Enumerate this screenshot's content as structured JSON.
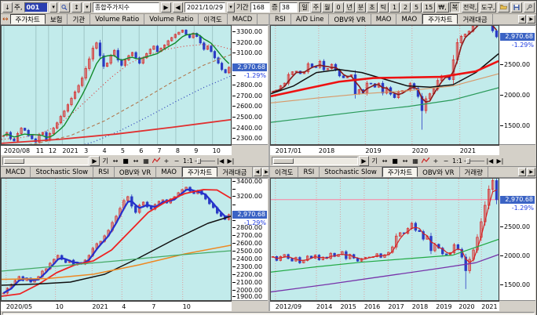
{
  "toolbar": {
    "collapse_button": "↓",
    "mode_label": "주,",
    "code_input": "001",
    "sort_button": "↕",
    "stock_name": "종합주가지수",
    "nav_forward": "▶",
    "nav_back": "◀",
    "date_value": "2021/10/29",
    "period_label": "기간",
    "period_value": "168",
    "count_label": "증",
    "count_value": "38",
    "timeframe_buttons": [
      {
        "label": "일",
        "pressed": true
      },
      {
        "label": "주",
        "pressed": false
      },
      {
        "label": "월",
        "pressed": false
      },
      {
        "label": "0",
        "pressed": false
      },
      {
        "label": "년",
        "pressed": false
      },
      {
        "label": "분",
        "pressed": false
      },
      {
        "label": "초",
        "pressed": false
      },
      {
        "label": "틱",
        "pressed": false
      },
      {
        "label": "1",
        "pressed": false
      },
      {
        "label": "2",
        "pressed": false
      },
      {
        "label": "5",
        "pressed": false
      },
      {
        "label": "15",
        "pressed": false
      },
      {
        "label": "₩,",
        "pressed": false
      },
      {
        "label": "복",
        "pressed": true
      }
    ],
    "menu_strategy": "전략,",
    "menu_tools": "도구,"
  },
  "tab_strips": {
    "top_left": {
      "selected": 0,
      "items": [
        "주가차트",
        "보험",
        "기관",
        "Volume Ratio",
        "Volume Ratio",
        "이격도",
        "MACD"
      ]
    },
    "top_right": {
      "selected": 5,
      "items": [
        "RSI",
        "A/D Line",
        "OBV와 VR",
        "MAO",
        "MAO",
        "주가차트",
        "거래대금"
      ]
    },
    "bottom_left": {
      "selected": 5,
      "items": [
        "MACD",
        "Stochastic Slow",
        "RSI",
        "OBV와 VR",
        "MAO",
        "주가차트",
        "거래대금"
      ]
    },
    "bottom_right": {
      "selected": 3,
      "items": [
        "이격도",
        "RSI",
        "Stochastic Slow",
        "주가차트",
        "OBV와 VR",
        "거래량"
      ]
    }
  },
  "mini_toolbar": {
    "scroll_next": "▶",
    "tools": [
      "기",
      "↔",
      "■",
      "↔",
      "▦"
    ],
    "zoom_in": "+",
    "zoom_out": "−",
    "one_to_one": "1:1",
    "nav_first": "|◀",
    "nav_last": "▶|"
  },
  "price_badge": {
    "value": "2,970.68",
    "change": "-1.29%"
  },
  "colors": {
    "chart_bg": "#c2ebeb",
    "badge_bg": "#3b63c4",
    "change_text": "#1e3ae0",
    "candle_up": "#d93030",
    "candle_down": "#2b3cc4",
    "hline_pink": "#ff7f9f"
  },
  "chart_data": {
    "tl": {
      "type": "candlestick",
      "timeframe": "daily",
      "ymin": 2250,
      "ymax": 3360,
      "badge": 2970.68,
      "grid_color": "#9fc6c6",
      "grid_dash": null,
      "yticks": [
        2300,
        2400,
        2500,
        2600,
        2700,
        2800,
        3100,
        3200,
        3300
      ],
      "yticks_minor": [
        2900,
        3000
      ],
      "xticks": [
        [
          "2020/08",
          0.01
        ],
        [
          "11",
          0.15
        ],
        [
          "12",
          0.205
        ],
        [
          "2021",
          0.265
        ],
        [
          "3",
          0.36
        ],
        [
          "4",
          0.44
        ],
        [
          "5",
          0.52
        ],
        [
          "6",
          0.6
        ],
        [
          "7",
          0.68
        ],
        [
          "8",
          0.76
        ],
        [
          "9",
          0.84
        ],
        [
          "10",
          0.92
        ]
      ],
      "closes": [
        2330,
        2360,
        2300,
        2280,
        2350,
        2400,
        2380,
        2330,
        2300,
        2270,
        2340,
        2360,
        2290,
        2350,
        2400,
        2450,
        2510,
        2560,
        2620,
        2680,
        2740,
        2800,
        2870,
        2960,
        3050,
        3150,
        3200,
        3080,
        2980,
        3010,
        3080,
        3130,
        3040,
        2990,
        3040,
        3080,
        3110,
        3060,
        3010,
        3060,
        3100,
        3140,
        3170,
        3120,
        3150,
        3180,
        3220,
        3250,
        3280,
        3300,
        3320,
        3280,
        3250,
        3290,
        3260,
        3200,
        3140,
        3170,
        3120,
        3060,
        3010,
        2950,
        2920,
        2970
      ],
      "ma": {
        "n": 6,
        "color": "#118a2a",
        "width": 1.4
      },
      "lines": [
        {
          "name": "ma60",
          "color": "#e03030",
          "width": 1.1,
          "dash": "1,3",
          "pts": [
            [
              0,
              2295
            ],
            [
              0.08,
              2310
            ],
            [
              0.16,
              2340
            ],
            [
              0.24,
              2420
            ],
            [
              0.32,
              2560
            ],
            [
              0.4,
              2720
            ],
            [
              0.48,
              2880
            ],
            [
              0.56,
              3010
            ],
            [
              0.64,
              3090
            ],
            [
              0.72,
              3140
            ],
            [
              0.8,
              3170
            ],
            [
              0.88,
              3185
            ],
            [
              0.94,
              3175
            ],
            [
              1,
              3140
            ]
          ]
        },
        {
          "name": "ma120",
          "color": "#b07850",
          "width": 1.1,
          "dash": "4,3",
          "pts": [
            [
              0,
              2215
            ],
            [
              0.15,
              2255
            ],
            [
              0.3,
              2330
            ],
            [
              0.45,
              2470
            ],
            [
              0.6,
              2650
            ],
            [
              0.75,
              2840
            ],
            [
              0.88,
              2990
            ],
            [
              1,
              3090
            ]
          ]
        },
        {
          "name": "ma240a",
          "color": "#2838b8",
          "width": 1.2,
          "dash": "1,3",
          "pts": [
            [
              0.27,
              2195
            ],
            [
              0.4,
              2270
            ],
            [
              0.52,
              2380
            ],
            [
              0.64,
              2510
            ],
            [
              0.76,
              2650
            ],
            [
              0.88,
              2780
            ],
            [
              1,
              2890
            ]
          ]
        },
        {
          "name": "ma240b",
          "color": "#e03030",
          "width": 1.8,
          "dash": null,
          "pts": [
            [
              0,
              2258
            ],
            [
              0.25,
              2295
            ],
            [
              0.5,
              2345
            ],
            [
              0.75,
              2410
            ],
            [
              1,
              2480
            ]
          ]
        }
      ]
    },
    "tr": {
      "type": "candlestick",
      "timeframe": "monthly",
      "ymin": 1200,
      "ymax": 3150,
      "badge": 2970.68,
      "grid_color": "#dd9f9f",
      "grid_dash": "1,2",
      "yticks": [
        1500,
        2000,
        2500
      ],
      "yticks_minor": [],
      "xticks": [
        [
          "2017/01",
          0.02
        ],
        [
          "2018",
          0.21
        ],
        [
          "2019",
          0.415
        ],
        [
          "2020",
          0.62
        ],
        [
          "2021",
          0.83
        ]
      ],
      "closes": [
        2068,
        2092,
        2160,
        2205,
        2347,
        2392,
        2403,
        2363,
        2394,
        2523,
        2476,
        2467,
        2566,
        2427,
        2446,
        2515,
        2423,
        2326,
        2295,
        2323,
        2343,
        2028,
        2097,
        2041,
        2205,
        2195,
        2141,
        2204,
        2042,
        2131,
        2025,
        1968,
        2063,
        2083,
        2088,
        2198,
        2119,
        1987,
        1754,
        1948,
        2030,
        2108,
        2249,
        2326,
        2327,
        2267,
        2591,
        2873,
        2976,
        3013,
        3061,
        3148,
        3204,
        3297,
        3202,
        3199,
        3069,
        2970
      ],
      "low_overrides": {
        "38": 1439
      },
      "ma": {
        "n": 3,
        "color": "#8a1a1a",
        "width": 1.6
      },
      "lines": [
        {
          "name": "ma12",
          "color": "#101010",
          "width": 1.5,
          "dash": null,
          "pts": [
            [
              0,
              2030
            ],
            [
              0.1,
              2160
            ],
            [
              0.2,
              2380
            ],
            [
              0.3,
              2430
            ],
            [
              0.4,
              2380
            ],
            [
              0.5,
              2270
            ],
            [
              0.6,
              2160
            ],
            [
              0.7,
              2140
            ],
            [
              0.8,
              2180
            ],
            [
              0.9,
              2380
            ],
            [
              1,
              2690
            ]
          ]
        },
        {
          "name": "ma24",
          "color": "#ee1111",
          "width": 2.6,
          "dash": null,
          "pts": [
            [
              0,
              1990
            ],
            [
              0.15,
              2110
            ],
            [
              0.3,
              2230
            ],
            [
              0.45,
              2290
            ],
            [
              0.6,
              2300
            ],
            [
              0.75,
              2310
            ],
            [
              0.9,
              2400
            ],
            [
              1,
              2570
            ]
          ]
        },
        {
          "name": "ma36",
          "color": "#d89868",
          "width": 1.1,
          "dash": null,
          "pts": [
            [
              0,
              1880
            ],
            [
              0.2,
              1960
            ],
            [
              0.4,
              2030
            ],
            [
              0.6,
              2080
            ],
            [
              0.8,
              2160
            ],
            [
              1,
              2360
            ]
          ]
        },
        {
          "name": "ma60",
          "color": "#2a9a5a",
          "width": 1.2,
          "dash": null,
          "pts": [
            [
              0,
              1560
            ],
            [
              0.2,
              1650
            ],
            [
              0.4,
              1740
            ],
            [
              0.6,
              1820
            ],
            [
              0.8,
              1930
            ],
            [
              1,
              2130
            ]
          ]
        }
      ]
    },
    "bl": {
      "type": "candlestick",
      "timeframe": "weekly",
      "ymin": 1880,
      "ymax": 3430,
      "badge": 2970.68,
      "grid_color": "#dd9f9f",
      "grid_dash": "1,2",
      "yticks": [
        1900,
        2000,
        2100,
        2200,
        2300,
        2400,
        2500,
        2600,
        2700,
        2800,
        3200,
        3400
      ],
      "yticks_minor": [
        2900,
        3000,
        3100,
        3300
      ],
      "xticks": [
        [
          "2020/05",
          0.02
        ],
        [
          "10",
          0.235
        ],
        [
          "2021",
          0.395
        ],
        [
          "4",
          0.525
        ],
        [
          "7",
          0.655
        ],
        [
          "10",
          0.79
        ]
      ],
      "closes": [
        1970,
        2030,
        2080,
        2130,
        2180,
        2130,
        2160,
        2110,
        2140,
        2180,
        2250,
        2280,
        2350,
        2400,
        2450,
        2400,
        2360,
        2390,
        2330,
        2360,
        2340,
        2390,
        2450,
        2540,
        2600,
        2630,
        2700,
        2770,
        2870,
        2950,
        3050,
        3150,
        3200,
        3080,
        3000,
        3090,
        3130,
        3070,
        3040,
        3100,
        3140,
        3160,
        3120,
        3170,
        3200,
        3250,
        3290,
        3320,
        3270,
        3240,
        3280,
        3230,
        3170,
        3110,
        3060,
        2990,
        2950,
        2910,
        2970
      ],
      "ma": {
        "n": 3,
        "color": "#2530cc",
        "width": 2.2
      },
      "lines": [
        {
          "name": "ma20",
          "color": "#ee2222",
          "width": 1.8,
          "dash": null,
          "pts": [
            [
              0,
              1930
            ],
            [
              0.08,
              1960
            ],
            [
              0.16,
              2080
            ],
            [
              0.24,
              2230
            ],
            [
              0.32,
              2330
            ],
            [
              0.4,
              2380
            ],
            [
              0.48,
              2520
            ],
            [
              0.56,
              2760
            ],
            [
              0.64,
              3000
            ],
            [
              0.72,
              3140
            ],
            [
              0.8,
              3240
            ],
            [
              0.88,
              3290
            ],
            [
              0.94,
              3285
            ],
            [
              1,
              3180
            ]
          ]
        },
        {
          "name": "ma60",
          "color": "#101010",
          "width": 1.5,
          "dash": null,
          "pts": [
            [
              0,
              2070
            ],
            [
              0.15,
              2085
            ],
            [
              0.3,
              2110
            ],
            [
              0.45,
              2210
            ],
            [
              0.6,
              2420
            ],
            [
              0.75,
              2650
            ],
            [
              0.9,
              2860
            ],
            [
              1,
              2950
            ]
          ]
        },
        {
          "name": "ma120",
          "color": "#ee8822",
          "width": 1.5,
          "dash": null,
          "pts": [
            [
              0,
              2145
            ],
            [
              0.2,
              2155
            ],
            [
              0.4,
              2210
            ],
            [
              0.6,
              2330
            ],
            [
              0.8,
              2470
            ],
            [
              1,
              2580
            ]
          ]
        },
        {
          "name": "ma240",
          "color": "#44aa66",
          "width": 1.2,
          "dash": null,
          "pts": [
            [
              0,
              2250
            ],
            [
              0.25,
              2315
            ],
            [
              0.5,
              2380
            ],
            [
              0.75,
              2450
            ],
            [
              1,
              2510
            ]
          ]
        }
      ]
    },
    "br": {
      "type": "candlestick",
      "timeframe": "monthly",
      "ymin": 1250,
      "ymax": 3330,
      "badge": 2970.68,
      "hline": {
        "v": 2970.68,
        "color": "#ff7f9f"
      },
      "grid_color": "#dd9f9f",
      "grid_dash": "1,2",
      "yticks": [
        1500,
        2000,
        2500
      ],
      "yticks_minor": [],
      "xticks": [
        [
          "2012/09",
          0.02
        ],
        [
          "2014",
          0.2
        ],
        [
          "2015",
          0.305
        ],
        [
          "2016",
          0.41
        ],
        [
          "2017",
          0.515
        ],
        [
          "2018",
          0.62
        ],
        [
          "2019",
          0.725
        ],
        [
          "2020",
          0.825
        ],
        [
          "2021",
          0.925
        ]
      ],
      "closes": [
        1996,
        1930,
        1997,
        2030,
        1963,
        1920,
        1980,
        1889,
        1930,
        2003,
        1967,
        2020,
        1941,
        1986,
        1964,
        2051,
        1998,
        2030,
        2080,
        1961,
        2030,
        1970,
        1918,
        1961,
        1983,
        1987,
        1994,
        2043,
        1983,
        2026,
        2068,
        2160,
        2347,
        2403,
        2394,
        2476,
        2566,
        2446,
        2423,
        2295,
        2343,
        2097,
        2205,
        2141,
        2042,
        2025,
        2063,
        2198,
        2119,
        1987,
        1754,
        1948,
        2108,
        2326,
        2591,
        2873,
        3148,
        3297,
        2970
      ],
      "low_overrides": {
        "50": 1440
      },
      "ma": {
        "n": 3,
        "color": "#d42222",
        "width": 1.2
      },
      "lines": [
        {
          "name": "ma60",
          "color": "#22aa44",
          "width": 1.2,
          "dash": null,
          "pts": [
            [
              0,
              1730
            ],
            [
              0.2,
              1820
            ],
            [
              0.4,
              1900
            ],
            [
              0.6,
              1960
            ],
            [
              0.8,
              2020
            ],
            [
              1,
              2290
            ]
          ]
        },
        {
          "name": "ma120",
          "color": "#7733aa",
          "width": 1.3,
          "dash": null,
          "pts": [
            [
              0,
              1390
            ],
            [
              0.25,
              1520
            ],
            [
              0.5,
              1660
            ],
            [
              0.75,
              1800
            ],
            [
              0.9,
              1890
            ],
            [
              1,
              2030
            ]
          ]
        }
      ]
    }
  }
}
